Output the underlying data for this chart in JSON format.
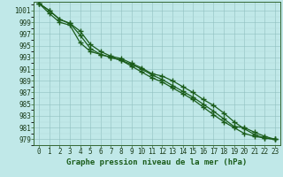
{
  "title": "Graphe pression niveau de la mer (hPa)",
  "background_color": "#c0e8e8",
  "grid_color_minor": "#b0d8d8",
  "grid_color_major": "#90c0c0",
  "line_color": "#1a5c1a",
  "marker_color": "#1a5c1a",
  "xlim": [
    -0.5,
    23.5
  ],
  "ylim": [
    978,
    1002.5
  ],
  "xticks": [
    0,
    1,
    2,
    3,
    4,
    5,
    6,
    7,
    8,
    9,
    10,
    11,
    12,
    13,
    14,
    15,
    16,
    17,
    18,
    19,
    20,
    21,
    22,
    23
  ],
  "yticks": [
    979,
    981,
    983,
    985,
    987,
    989,
    991,
    993,
    995,
    997,
    999,
    1001
  ],
  "series": [
    [
      1002.2,
      1001.0,
      999.5,
      998.8,
      997.5,
      995.2,
      994.0,
      993.2,
      992.8,
      992.0,
      991.2,
      990.2,
      989.8,
      989.0,
      988.0,
      987.0,
      985.8,
      984.8,
      983.5,
      982.0,
      980.8,
      979.8,
      979.2,
      979.0
    ],
    [
      1002.2,
      1001.0,
      999.5,
      998.8,
      996.8,
      994.5,
      993.5,
      993.0,
      992.5,
      991.5,
      990.5,
      989.5,
      988.8,
      987.8,
      986.8,
      985.8,
      984.5,
      983.2,
      982.0,
      981.0,
      980.0,
      979.5,
      979.2,
      979.0
    ],
    [
      1002.2,
      1000.5,
      999.0,
      998.5,
      995.5,
      994.0,
      993.5,
      993.0,
      992.5,
      991.8,
      991.0,
      990.0,
      989.2,
      988.2,
      987.2,
      986.2,
      985.0,
      983.8,
      982.5,
      981.2,
      981.0,
      980.2,
      979.5,
      979.0
    ]
  ],
  "marker_size": 4,
  "linewidth": 0.9,
  "title_fontsize": 6.5,
  "tick_fontsize": 5.5
}
